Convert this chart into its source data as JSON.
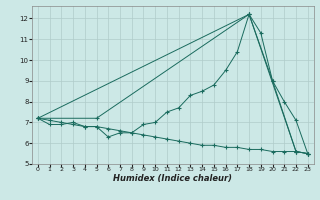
{
  "xlabel": "Humidex (Indice chaleur)",
  "background_color": "#cce8e6",
  "grid_color": "#b0ccca",
  "line_color": "#1a6b5e",
  "xlim": [
    -0.5,
    23.5
  ],
  "ylim": [
    5,
    12.6
  ],
  "yticks": [
    5,
    6,
    7,
    8,
    9,
    10,
    11,
    12
  ],
  "xticks": [
    0,
    1,
    2,
    3,
    4,
    5,
    6,
    7,
    8,
    9,
    10,
    11,
    12,
    13,
    14,
    15,
    16,
    17,
    18,
    19,
    20,
    21,
    22,
    23
  ],
  "series": [
    {
      "x": [
        0,
        1,
        2,
        3,
        4,
        5,
        6,
        7,
        8,
        9,
        10,
        11,
        12,
        13,
        14,
        15,
        16,
        17,
        18,
        19,
        20,
        21,
        22,
        23
      ],
      "y": [
        7.2,
        6.9,
        6.9,
        7.0,
        6.8,
        6.8,
        6.3,
        6.5,
        6.5,
        6.9,
        7.0,
        7.5,
        7.7,
        8.3,
        8.5,
        8.8,
        9.5,
        10.4,
        12.2,
        11.3,
        9.0,
        8.0,
        7.1,
        5.5
      ]
    },
    {
      "x": [
        0,
        18,
        22,
        23
      ],
      "y": [
        7.2,
        12.2,
        5.6,
        5.5
      ]
    },
    {
      "x": [
        0,
        5,
        18,
        20,
        22,
        23
      ],
      "y": [
        7.2,
        7.2,
        12.2,
        9.0,
        5.6,
        5.5
      ]
    },
    {
      "x": [
        0,
        1,
        2,
        3,
        4,
        5,
        6,
        7,
        8,
        9,
        10,
        11,
        12,
        13,
        14,
        15,
        16,
        17,
        18,
        19,
        20,
        21,
        22,
        23
      ],
      "y": [
        7.2,
        7.1,
        7.0,
        6.9,
        6.8,
        6.8,
        6.7,
        6.6,
        6.5,
        6.4,
        6.3,
        6.2,
        6.1,
        6.0,
        5.9,
        5.9,
        5.8,
        5.8,
        5.7,
        5.7,
        5.6,
        5.6,
        5.6,
        5.5
      ]
    }
  ]
}
